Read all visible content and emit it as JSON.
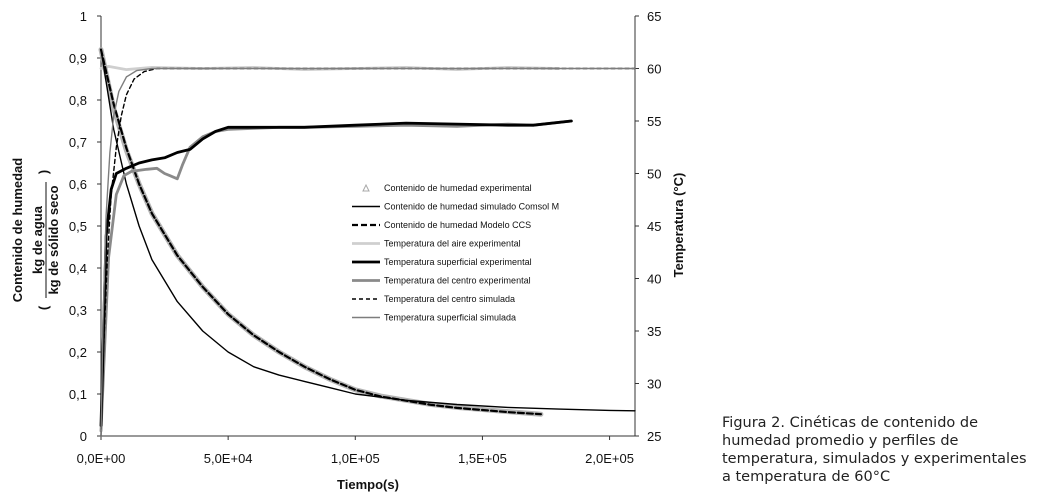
{
  "chart_data": {
    "type": "line",
    "x": {
      "label": "Tiempo(s)",
      "range": [
        0,
        210000
      ],
      "ticks": [
        0,
        50000,
        100000,
        150000,
        200000
      ],
      "tick_labels": [
        "0,0E+00",
        "5,0E+04",
        "1,0E+05",
        "1,5E+05",
        "2,0E+05"
      ]
    },
    "y_left": {
      "label": "Contenido de humedad",
      "fraction_numerator": "kg de agua",
      "fraction_denominator": "kg de sólido seco",
      "paren_open": "(",
      "paren_close": ")",
      "range": [
        0,
        1
      ],
      "ticks": [
        0,
        0.1,
        0.2,
        0.3,
        0.4,
        0.5,
        0.6,
        0.7,
        0.8,
        0.9,
        1
      ],
      "tick_labels": [
        "0",
        "0,1",
        "0,2",
        "0,3",
        "0,4",
        "0,5",
        "0,6",
        "0,7",
        "0,8",
        "0,9",
        "1"
      ]
    },
    "y_right": {
      "label": "Temperatura (°C)",
      "range": [
        25,
        65
      ],
      "ticks": [
        25,
        30,
        35,
        40,
        45,
        50,
        55,
        60,
        65
      ],
      "tick_labels": [
        "25",
        "30",
        "35",
        "40",
        "45",
        "50",
        "55",
        "60",
        "65"
      ]
    },
    "grid": false,
    "legend_position": "center",
    "series": [
      {
        "name": "Contenido de humedad experimental",
        "axis": "left",
        "color": "#a8a8a8",
        "style": "triangle-markers",
        "points": [
          [
            0,
            0.92
          ],
          [
            5000,
            0.78
          ],
          [
            10000,
            0.68
          ],
          [
            15000,
            0.6
          ],
          [
            20000,
            0.53
          ],
          [
            30000,
            0.43
          ],
          [
            40000,
            0.355
          ],
          [
            50000,
            0.29
          ],
          [
            60000,
            0.24
          ],
          [
            70000,
            0.2
          ],
          [
            80000,
            0.165
          ],
          [
            90000,
            0.135
          ],
          [
            100000,
            0.11
          ],
          [
            110000,
            0.095
          ],
          [
            120000,
            0.085
          ],
          [
            130000,
            0.075
          ],
          [
            140000,
            0.068
          ],
          [
            150000,
            0.063
          ],
          [
            160000,
            0.058
          ],
          [
            173000,
            0.052
          ]
        ]
      },
      {
        "name": "Contenido de humedad simulado Comsol M",
        "axis": "left",
        "color": "#000000",
        "style": "solid-thin",
        "points": [
          [
            0,
            0.92
          ],
          [
            5000,
            0.73
          ],
          [
            10000,
            0.6
          ],
          [
            15000,
            0.5
          ],
          [
            20000,
            0.42
          ],
          [
            30000,
            0.32
          ],
          [
            40000,
            0.25
          ],
          [
            50000,
            0.2
          ],
          [
            60000,
            0.165
          ],
          [
            70000,
            0.145
          ],
          [
            80000,
            0.13
          ],
          [
            90000,
            0.115
          ],
          [
            100000,
            0.1
          ],
          [
            120000,
            0.085
          ],
          [
            140000,
            0.075
          ],
          [
            160000,
            0.068
          ],
          [
            180000,
            0.064
          ],
          [
            200000,
            0.061
          ],
          [
            210000,
            0.06
          ]
        ]
      },
      {
        "name": "Contenido de humedad Modelo CCS",
        "axis": "left",
        "color": "#000000",
        "style": "dashed-thick",
        "points": [
          [
            0,
            0.92
          ],
          [
            5000,
            0.79
          ],
          [
            10000,
            0.685
          ],
          [
            15000,
            0.6
          ],
          [
            20000,
            0.53
          ],
          [
            30000,
            0.43
          ],
          [
            40000,
            0.355
          ],
          [
            50000,
            0.29
          ],
          [
            60000,
            0.24
          ],
          [
            70000,
            0.2
          ],
          [
            80000,
            0.165
          ],
          [
            90000,
            0.135
          ],
          [
            100000,
            0.11
          ],
          [
            110000,
            0.094
          ],
          [
            120000,
            0.084
          ],
          [
            130000,
            0.074
          ],
          [
            140000,
            0.067
          ],
          [
            150000,
            0.062
          ],
          [
            160000,
            0.057
          ],
          [
            173000,
            0.052
          ]
        ]
      },
      {
        "name": "Temperatura del aire experimental",
        "axis": "right",
        "color": "#cfcfcf",
        "style": "solid-thick",
        "points": [
          [
            0,
            60
          ],
          [
            3000,
            60.2
          ],
          [
            10000,
            59.9
          ],
          [
            20000,
            60.1
          ],
          [
            40000,
            60
          ],
          [
            60000,
            60.1
          ],
          [
            80000,
            59.9
          ],
          [
            100000,
            60
          ],
          [
            120000,
            60.1
          ],
          [
            140000,
            59.9
          ],
          [
            160000,
            60.1
          ],
          [
            180000,
            60
          ]
        ]
      },
      {
        "name": "Temperatura superficial experimental",
        "axis": "right",
        "color": "#000000",
        "style": "solid-thick",
        "points": [
          [
            0,
            26
          ],
          [
            2000,
            44
          ],
          [
            4000,
            48.5
          ],
          [
            6000,
            50
          ],
          [
            10000,
            50.5
          ],
          [
            15000,
            51
          ],
          [
            20000,
            51.3
          ],
          [
            25000,
            51.5
          ],
          [
            30000,
            52
          ],
          [
            35000,
            52.3
          ],
          [
            40000,
            53.3
          ],
          [
            45000,
            54
          ],
          [
            50000,
            54.4
          ],
          [
            60000,
            54.4
          ],
          [
            70000,
            54.4
          ],
          [
            80000,
            54.4
          ],
          [
            100000,
            54.6
          ],
          [
            120000,
            54.8
          ],
          [
            140000,
            54.7
          ],
          [
            160000,
            54.6
          ],
          [
            170000,
            54.6
          ],
          [
            185000,
            55
          ]
        ]
      },
      {
        "name": "Temperatura del centro experimental",
        "axis": "right",
        "color": "#8a8a8a",
        "style": "solid-thick",
        "points": [
          [
            0,
            25.5
          ],
          [
            3000,
            42
          ],
          [
            6000,
            48
          ],
          [
            9000,
            49.8
          ],
          [
            12000,
            50.2
          ],
          [
            18000,
            50.4
          ],
          [
            22000,
            50.5
          ],
          [
            25000,
            50
          ],
          [
            27000,
            49.8
          ],
          [
            30000,
            49.5
          ],
          [
            32000,
            50.8
          ],
          [
            35000,
            52.5
          ],
          [
            40000,
            53.5
          ],
          [
            45000,
            54
          ],
          [
            50000,
            54.2
          ],
          [
            60000,
            54.3
          ],
          [
            70000,
            54.4
          ],
          [
            80000,
            54.4
          ],
          [
            100000,
            54.5
          ],
          [
            120000,
            54.6
          ],
          [
            140000,
            54.5
          ],
          [
            160000,
            54.7
          ],
          [
            170000,
            54.6
          ],
          [
            185000,
            55
          ]
        ]
      },
      {
        "name": "Temperatura del centro simulada",
        "axis": "right",
        "color": "#000000",
        "style": "dashed-thin",
        "points": [
          [
            0,
            25
          ],
          [
            1000,
            33
          ],
          [
            2500,
            42
          ],
          [
            4000,
            48
          ],
          [
            6000,
            52.5
          ],
          [
            8000,
            55.5
          ],
          [
            10000,
            57.5
          ],
          [
            13000,
            59
          ],
          [
            17000,
            59.7
          ],
          [
            22000,
            60
          ],
          [
            210000,
            60
          ]
        ]
      },
      {
        "name": "Temperatura superficial simulada",
        "axis": "right",
        "color": "#7d7d7d",
        "style": "solid-thin",
        "points": [
          [
            0,
            25
          ],
          [
            800,
            36
          ],
          [
            2000,
            46
          ],
          [
            3500,
            52
          ],
          [
            5000,
            55.5
          ],
          [
            7000,
            57.8
          ],
          [
            10000,
            59.2
          ],
          [
            14000,
            59.8
          ],
          [
            20000,
            60
          ],
          [
            210000,
            60
          ]
        ]
      }
    ]
  },
  "caption": {
    "lines": [
      "Figura 2. Cinéticas de contenido de",
      "humedad promedio y perfiles de",
      "temperatura, simulados y experimentales",
      "a temperatura de 60°C"
    ]
  }
}
